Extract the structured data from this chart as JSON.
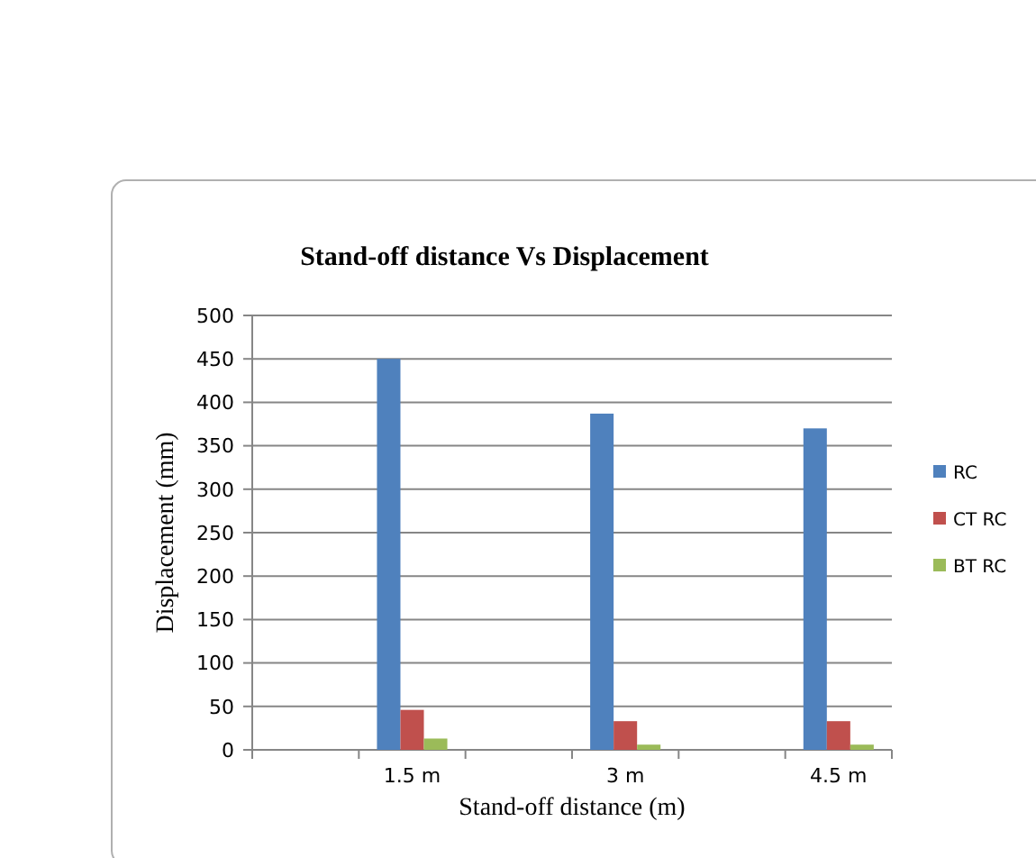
{
  "chart_data": {
    "type": "bar",
    "title": "Stand-off distance Vs Displacement",
    "xlabel": "Stand-off distance  (m)",
    "ylabel": "Displacement  (mm)",
    "categories": [
      null,
      "1.5 m",
      null,
      "3 m",
      null,
      "4.5 m"
    ],
    "series": [
      {
        "name": "RC",
        "color": "#4f81bd",
        "values": [
          null,
          450,
          null,
          387,
          null,
          370
        ]
      },
      {
        "name": "CT RC",
        "color": "#c0504d",
        "values": [
          null,
          46,
          null,
          33,
          null,
          33
        ]
      },
      {
        "name": "BT RC",
        "color": "#9bbb59",
        "values": [
          null,
          13,
          null,
          6,
          null,
          6
        ]
      }
    ],
    "ylim": [
      0,
      500
    ],
    "yticks": [
      0,
      50,
      100,
      150,
      200,
      250,
      300,
      350,
      400,
      450,
      500
    ],
    "grid": "y",
    "legend": "right"
  }
}
